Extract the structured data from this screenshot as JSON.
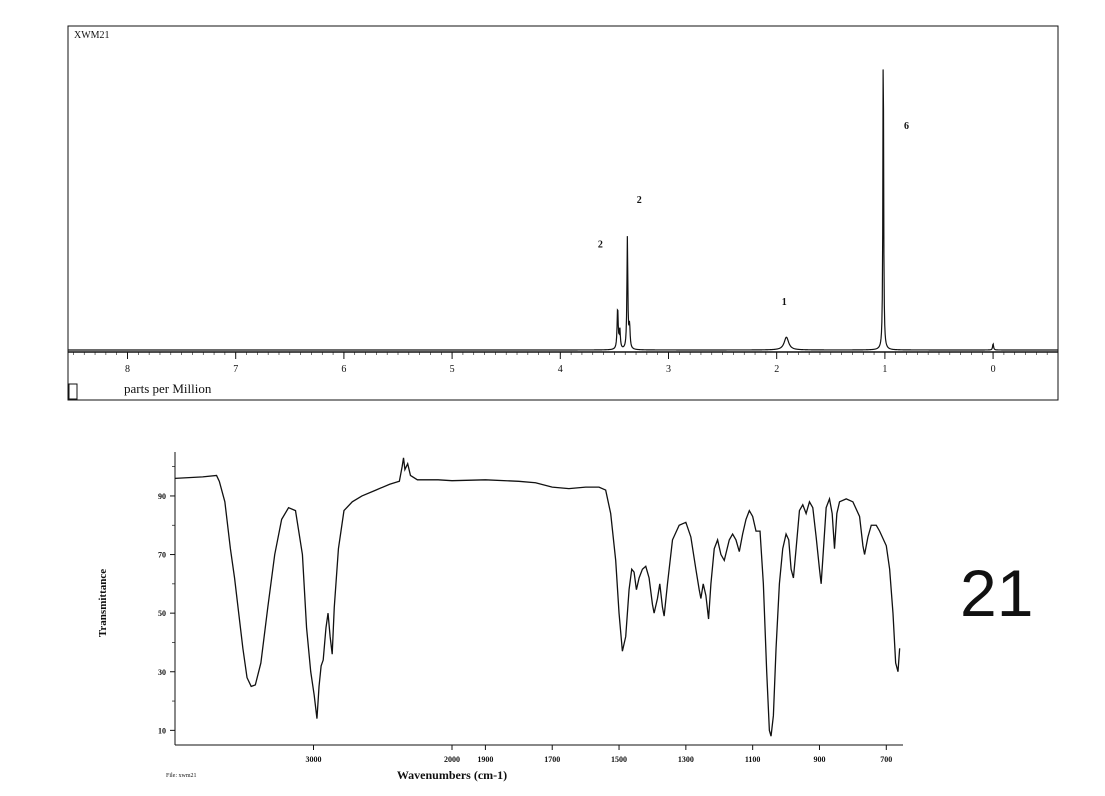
{
  "sample_label": "XWM21",
  "compound_number": "21",
  "ir_file": "File: xwm21",
  "colors": {
    "ink": "#111111",
    "background": "#ffffff"
  },
  "chart_data": [
    {
      "type": "line",
      "subtype": "nmr-spectrum",
      "title": "XWM21",
      "xlabel": "parts per Million",
      "ylabel": "",
      "x_reversed": true,
      "xlim": [
        8.55,
        -0.6
      ],
      "ylim": [
        0,
        1.0
      ],
      "x_ticks": [
        8,
        7,
        6,
        5,
        4,
        3,
        2,
        1,
        0
      ],
      "grid": false,
      "peaks": [
        {
          "ppm": 3.47,
          "height": 0.13,
          "width": 0.006
        },
        {
          "ppm": 3.45,
          "height": 0.06,
          "width": 0.006
        },
        {
          "ppm": 3.38,
          "height": 0.35,
          "width": 0.005
        },
        {
          "ppm": 3.36,
          "height": 0.07,
          "width": 0.006
        },
        {
          "ppm": 1.91,
          "height": 0.04,
          "width": 0.025
        },
        {
          "ppm": 1.015,
          "height": 1.0,
          "width": 0.004
        },
        {
          "ppm": 0.0,
          "height": 0.02,
          "width": 0.005
        }
      ],
      "integrals": [
        {
          "ppm": 3.63,
          "label": "2",
          "level": 0.32
        },
        {
          "ppm": 3.27,
          "label": "2",
          "level": 0.46
        },
        {
          "ppm": 1.93,
          "label": "1",
          "level": 0.14
        },
        {
          "ppm": 0.8,
          "label": "6",
          "level": 0.69
        }
      ]
    },
    {
      "type": "line",
      "subtype": "ir-spectrum",
      "title": "",
      "xlabel": "Wavenumbers (cm-1)",
      "ylabel": "Transmittance",
      "x_reversed": true,
      "xlim": [
        4000,
        650
      ],
      "ylim": [
        5,
        105
      ],
      "x_ticks": [
        3000,
        2000,
        1900,
        1700,
        1500,
        1300,
        1100,
        900,
        700
      ],
      "y_ticks": [
        10,
        30,
        50,
        70,
        90
      ],
      "grid": false,
      "points": [
        [
          4000,
          96
        ],
        [
          3800,
          96.5
        ],
        [
          3700,
          97
        ],
        [
          3680,
          95
        ],
        [
          3640,
          88
        ],
        [
          3600,
          72
        ],
        [
          3570,
          62
        ],
        [
          3540,
          50
        ],
        [
          3510,
          38
        ],
        [
          3480,
          28
        ],
        [
          3450,
          25
        ],
        [
          3420,
          25.5
        ],
        [
          3380,
          33
        ],
        [
          3330,
          52
        ],
        [
          3280,
          70
        ],
        [
          3230,
          82
        ],
        [
          3180,
          86
        ],
        [
          3130,
          85
        ],
        [
          3080,
          70
        ],
        [
          3050,
          45
        ],
        [
          3020,
          30
        ],
        [
          2995,
          22
        ],
        [
          2975,
          14
        ],
        [
          2960,
          25
        ],
        [
          2945,
          32
        ],
        [
          2930,
          34
        ],
        [
          2910,
          45
        ],
        [
          2895,
          50
        ],
        [
          2880,
          42
        ],
        [
          2865,
          36
        ],
        [
          2850,
          52
        ],
        [
          2820,
          72
        ],
        [
          2780,
          85
        ],
        [
          2720,
          88
        ],
        [
          2650,
          90
        ],
        [
          2550,
          92
        ],
        [
          2450,
          94
        ],
        [
          2380,
          95
        ],
        [
          2360,
          100
        ],
        [
          2350,
          103
        ],
        [
          2340,
          99
        ],
        [
          2320,
          101
        ],
        [
          2300,
          97
        ],
        [
          2250,
          95.5
        ],
        [
          2100,
          95.5
        ],
        [
          2000,
          95.2
        ],
        [
          1900,
          95.5
        ],
        [
          1800,
          95
        ],
        [
          1750,
          94.5
        ],
        [
          1700,
          93
        ],
        [
          1650,
          92.5
        ],
        [
          1600,
          93
        ],
        [
          1560,
          93
        ],
        [
          1540,
          92
        ],
        [
          1525,
          84
        ],
        [
          1510,
          68
        ],
        [
          1500,
          50
        ],
        [
          1490,
          37
        ],
        [
          1480,
          42
        ],
        [
          1470,
          58
        ],
        [
          1462,
          65
        ],
        [
          1455,
          64
        ],
        [
          1448,
          58
        ],
        [
          1440,
          62
        ],
        [
          1430,
          65
        ],
        [
          1420,
          66
        ],
        [
          1410,
          62
        ],
        [
          1400,
          53
        ],
        [
          1395,
          50
        ],
        [
          1385,
          55
        ],
        [
          1378,
          60
        ],
        [
          1370,
          52
        ],
        [
          1365,
          49
        ],
        [
          1355,
          60
        ],
        [
          1340,
          75
        ],
        [
          1320,
          80
        ],
        [
          1300,
          81
        ],
        [
          1285,
          76
        ],
        [
          1270,
          65
        ],
        [
          1260,
          58
        ],
        [
          1255,
          55
        ],
        [
          1248,
          60
        ],
        [
          1240,
          56
        ],
        [
          1232,
          48
        ],
        [
          1225,
          60
        ],
        [
          1215,
          72
        ],
        [
          1205,
          75
        ],
        [
          1195,
          70
        ],
        [
          1185,
          68
        ],
        [
          1170,
          75
        ],
        [
          1160,
          77
        ],
        [
          1150,
          75
        ],
        [
          1140,
          71
        ],
        [
          1130,
          77
        ],
        [
          1120,
          82
        ],
        [
          1110,
          85
        ],
        [
          1100,
          83
        ],
        [
          1090,
          78
        ],
        [
          1078,
          78
        ],
        [
          1068,
          60
        ],
        [
          1058,
          30
        ],
        [
          1050,
          10
        ],
        [
          1045,
          8
        ],
        [
          1038,
          15
        ],
        [
          1030,
          38
        ],
        [
          1020,
          60
        ],
        [
          1010,
          72
        ],
        [
          1000,
          77
        ],
        [
          992,
          75
        ],
        [
          985,
          65
        ],
        [
          978,
          62
        ],
        [
          970,
          72
        ],
        [
          960,
          85
        ],
        [
          950,
          87
        ],
        [
          940,
          84
        ],
        [
          930,
          88
        ],
        [
          920,
          86
        ],
        [
          910,
          76
        ],
        [
          900,
          65
        ],
        [
          895,
          60
        ],
        [
          888,
          72
        ],
        [
          880,
          86
        ],
        [
          870,
          89
        ],
        [
          862,
          84
        ],
        [
          855,
          72
        ],
        [
          848,
          84
        ],
        [
          840,
          88
        ],
        [
          820,
          89
        ],
        [
          800,
          88
        ],
        [
          780,
          83
        ],
        [
          770,
          73
        ],
        [
          765,
          70
        ],
        [
          755,
          76
        ],
        [
          745,
          80
        ],
        [
          730,
          80
        ],
        [
          720,
          78
        ],
        [
          700,
          73
        ],
        [
          690,
          65
        ],
        [
          680,
          50
        ],
        [
          672,
          33
        ],
        [
          665,
          30
        ],
        [
          660,
          38
        ]
      ]
    }
  ]
}
